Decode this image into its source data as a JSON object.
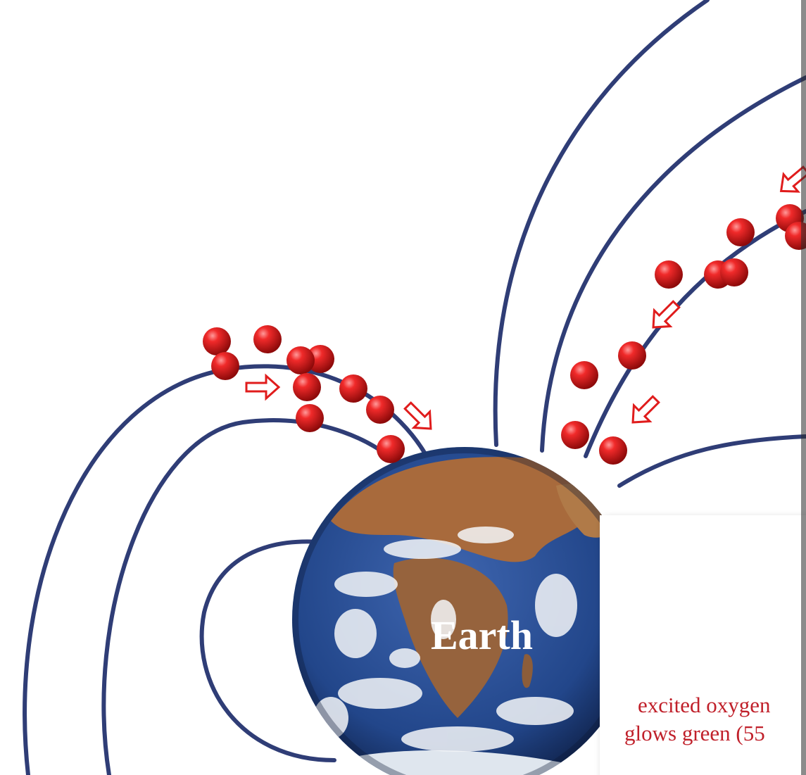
{
  "diagram": {
    "earth_label": "Earth",
    "caption": {
      "line1": "excited oxygen",
      "line2": "glows green (55"
    },
    "colors": {
      "field_line": "#2f3d76",
      "particle": "#d41414",
      "particle_highlight": "#ff9a9a",
      "arrow": "#e01c1c",
      "caption": "#c0202a",
      "ocean": "#25498c",
      "land": "#a86a3c",
      "cloud": "#f4f6f8",
      "panel": "#ffffff"
    },
    "icons": {
      "particle": "red-sphere-icon",
      "arrow": "hollow-arrow-icon",
      "planet": "earth-globe-icon"
    }
  }
}
